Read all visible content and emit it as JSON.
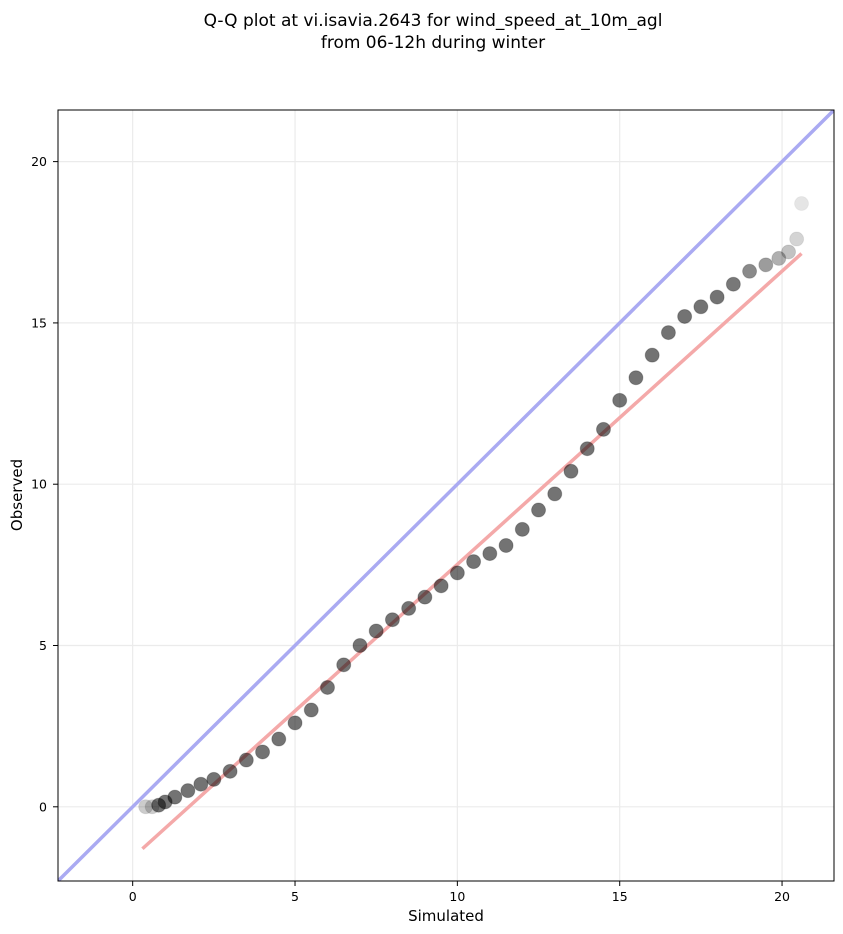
{
  "chart_data": {
    "type": "scatter",
    "title_lines": [
      "Q-Q plot at vi.isavia.2643 for wind_speed_at_10m_agl",
      "from 06-12h during winter"
    ],
    "xlabel": "Simulated",
    "ylabel": "Observed",
    "xlim": [
      -2.3,
      21.6
    ],
    "ylim": [
      -2.3,
      21.6
    ],
    "xticks": [
      0,
      5,
      10,
      15,
      20
    ],
    "yticks": [
      0,
      5,
      10,
      15,
      20
    ],
    "xtick_labels": [
      "0",
      "5",
      "10",
      "15",
      "20"
    ],
    "ytick_labels": [
      "0",
      "5",
      "10",
      "15",
      "20"
    ],
    "grid": true,
    "colors": {
      "points": "#000000",
      "identity_line": "#aaaaf2",
      "fit_line": "#f4a9a9",
      "grid": "#ebebeb"
    },
    "series": [
      {
        "kind": "quantile-points",
        "points": [
          [
            0.4,
            0.0
          ],
          [
            0.6,
            0.0
          ],
          [
            0.8,
            0.05
          ],
          [
            1.0,
            0.15
          ],
          [
            1.3,
            0.3
          ],
          [
            1.7,
            0.5
          ],
          [
            2.1,
            0.7
          ],
          [
            2.5,
            0.85
          ],
          [
            3.0,
            1.1
          ],
          [
            3.5,
            1.45
          ],
          [
            4.0,
            1.7
          ],
          [
            4.5,
            2.1
          ],
          [
            5.0,
            2.6
          ],
          [
            5.5,
            3.0
          ],
          [
            6.0,
            3.7
          ],
          [
            6.5,
            4.4
          ],
          [
            7.0,
            5.0
          ],
          [
            7.5,
            5.45
          ],
          [
            8.0,
            5.8
          ],
          [
            8.5,
            6.15
          ],
          [
            9.0,
            6.5
          ],
          [
            9.5,
            6.85
          ],
          [
            10.0,
            7.25
          ],
          [
            10.5,
            7.6
          ],
          [
            11.0,
            7.85
          ],
          [
            11.5,
            8.1
          ],
          [
            12.0,
            8.6
          ],
          [
            12.5,
            9.2
          ],
          [
            13.0,
            9.7
          ],
          [
            13.5,
            10.4
          ],
          [
            14.0,
            11.1
          ],
          [
            14.5,
            11.7
          ],
          [
            15.0,
            12.6
          ],
          [
            15.5,
            13.3
          ],
          [
            16.0,
            14.0
          ],
          [
            16.5,
            14.7
          ],
          [
            17.0,
            15.2
          ],
          [
            17.5,
            15.5
          ],
          [
            18.0,
            15.8
          ],
          [
            18.5,
            16.2
          ],
          [
            19.0,
            16.6
          ],
          [
            19.5,
            16.8
          ],
          [
            19.9,
            17.0
          ],
          [
            20.2,
            17.2
          ],
          [
            20.45,
            17.6
          ],
          [
            20.6,
            18.7
          ]
        ]
      },
      {
        "kind": "identity-line",
        "points": [
          [
            -2.3,
            -2.3
          ],
          [
            21.6,
            21.6
          ]
        ]
      },
      {
        "kind": "fit-line",
        "points": [
          [
            0.3,
            -1.3
          ],
          [
            20.6,
            17.15
          ]
        ]
      }
    ]
  }
}
